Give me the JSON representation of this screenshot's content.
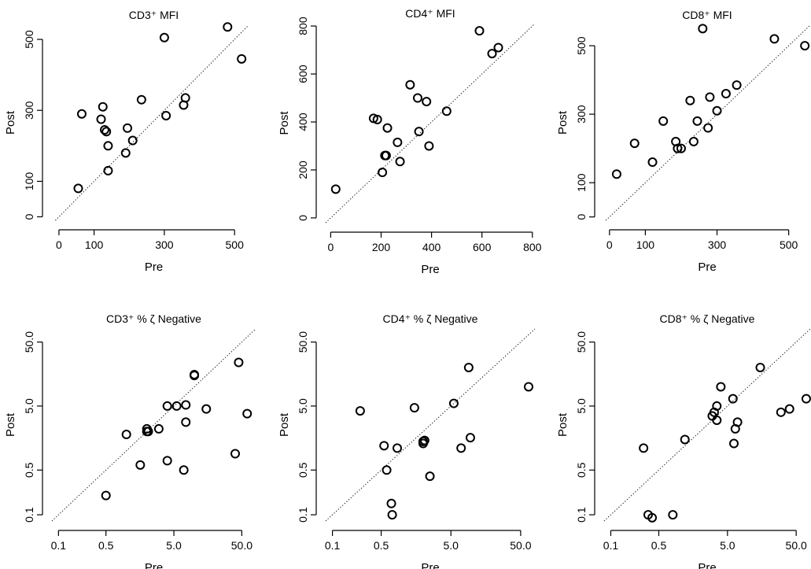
{
  "chart_data": [
    {
      "type": "scatter",
      "title": "CD3⁺ MFI",
      "xlabel": "Pre",
      "ylabel": "Post",
      "xscale": "linear",
      "yscale": "linear",
      "xlim": [
        -20,
        560
      ],
      "ylim": [
        -10,
        540
      ],
      "xticks": [
        0,
        100,
        300,
        500
      ],
      "xtick_labels": [
        "0",
        "100",
        "300",
        "500"
      ],
      "yticks": [
        0,
        100,
        300,
        500
      ],
      "ytick_labels": [
        "0",
        "100",
        "300",
        "500"
      ],
      "reference_line": "y = x",
      "points": [
        [
          55,
          80
        ],
        [
          65,
          290
        ],
        [
          120,
          275
        ],
        [
          125,
          310
        ],
        [
          130,
          245
        ],
        [
          135,
          240
        ],
        [
          140,
          200
        ],
        [
          140,
          130
        ],
        [
          190,
          180
        ],
        [
          195,
          250
        ],
        [
          210,
          215
        ],
        [
          235,
          330
        ],
        [
          300,
          505
        ],
        [
          305,
          285
        ],
        [
          355,
          315
        ],
        [
          360,
          335
        ],
        [
          480,
          535
        ],
        [
          520,
          445
        ]
      ]
    },
    {
      "type": "scatter",
      "title": "CD4⁺ MFI",
      "xlabel": "Pre",
      "ylabel": "Post",
      "xscale": "linear",
      "yscale": "linear",
      "xlim": [
        -20,
        810
      ],
      "ylim": [
        -20,
        810
      ],
      "xticks": [
        0,
        200,
        400,
        600,
        800
      ],
      "xtick_labels": [
        "0",
        "200",
        "400",
        "600",
        "800"
      ],
      "yticks": [
        0,
        200,
        400,
        600,
        800
      ],
      "ytick_labels": [
        "0",
        "200",
        "400",
        "600",
        "800"
      ],
      "reference_line": "y = x",
      "points": [
        [
          20,
          120
        ],
        [
          170,
          415
        ],
        [
          185,
          410
        ],
        [
          205,
          190
        ],
        [
          215,
          260
        ],
        [
          220,
          260
        ],
        [
          225,
          375
        ],
        [
          265,
          315
        ],
        [
          275,
          235
        ],
        [
          315,
          555
        ],
        [
          345,
          500
        ],
        [
          350,
          360
        ],
        [
          380,
          485
        ],
        [
          390,
          300
        ],
        [
          460,
          445
        ],
        [
          590,
          780
        ],
        [
          640,
          685
        ],
        [
          665,
          710
        ]
      ]
    },
    {
      "type": "scatter",
      "title": "CD8⁺ MFI",
      "xlabel": "Pre",
      "ylabel": "Post",
      "xscale": "linear",
      "yscale": "linear",
      "xlim": [
        -15,
        560
      ],
      "ylim": [
        -10,
        560
      ],
      "xticks": [
        0,
        100,
        300,
        500
      ],
      "xtick_labels": [
        "0",
        "100",
        "300",
        "500"
      ],
      "yticks": [
        0,
        100,
        300,
        500
      ],
      "ytick_labels": [
        "0",
        "100",
        "300",
        "500"
      ],
      "reference_line": "y = x",
      "points": [
        [
          20,
          125
        ],
        [
          70,
          215
        ],
        [
          120,
          160
        ],
        [
          150,
          280
        ],
        [
          185,
          220
        ],
        [
          190,
          200
        ],
        [
          200,
          200
        ],
        [
          225,
          340
        ],
        [
          235,
          220
        ],
        [
          245,
          280
        ],
        [
          260,
          550
        ],
        [
          275,
          260
        ],
        [
          280,
          350
        ],
        [
          300,
          310
        ],
        [
          325,
          360
        ],
        [
          355,
          385
        ],
        [
          460,
          520
        ],
        [
          545,
          500
        ]
      ]
    },
    {
      "type": "scatter",
      "title": "CD3⁺ % ζ Negative",
      "xlabel": "Pre",
      "ylabel": "Post",
      "xscale": "log",
      "yscale": "log",
      "xlim": [
        0.08,
        80
      ],
      "ylim": [
        0.08,
        80
      ],
      "xticks": [
        0.1,
        0.5,
        5.0,
        50.0
      ],
      "xtick_labels": [
        "0.1",
        "0.5",
        "5.0",
        "50.0"
      ],
      "yticks": [
        0.1,
        0.5,
        5.0,
        50.0
      ],
      "ytick_labels": [
        "0.1",
        "0.5",
        "5.0",
        "50.0"
      ],
      "reference_line": "y = x",
      "points": [
        [
          0.5,
          0.2
        ],
        [
          1.0,
          1.8
        ],
        [
          1.6,
          0.6
        ],
        [
          2.0,
          2.0
        ],
        [
          2.0,
          2.2
        ],
        [
          2.1,
          2.0
        ],
        [
          3.0,
          2.2
        ],
        [
          4.0,
          0.7
        ],
        [
          4.0,
          5.0
        ],
        [
          5.5,
          5.0
        ],
        [
          7.0,
          0.5
        ],
        [
          7.5,
          5.2
        ],
        [
          7.5,
          2.8
        ],
        [
          10.0,
          15.0
        ],
        [
          10.0,
          15.5
        ],
        [
          15.0,
          4.5
        ],
        [
          40.0,
          0.9
        ],
        [
          45.0,
          24.0
        ],
        [
          60.0,
          3.8
        ]
      ]
    },
    {
      "type": "scatter",
      "title": "CD4⁺ % ζ Negative",
      "xlabel": "Pre",
      "ylabel": "Post",
      "xscale": "log",
      "yscale": "log",
      "xlim": [
        0.08,
        80
      ],
      "ylim": [
        0.08,
        80
      ],
      "xticks": [
        0.1,
        0.5,
        5.0,
        50.0
      ],
      "xtick_labels": [
        "0.1",
        "0.5",
        "5.0",
        "50.0"
      ],
      "yticks": [
        0.1,
        0.5,
        5.0,
        50.0
      ],
      "ytick_labels": [
        "0.1",
        "0.5",
        "5.0",
        "50.0"
      ],
      "reference_line": "y = x",
      "points": [
        [
          0.25,
          4.2
        ],
        [
          0.55,
          1.2
        ],
        [
          0.6,
          0.5
        ],
        [
          0.7,
          0.15
        ],
        [
          0.72,
          0.1
        ],
        [
          0.85,
          1.1
        ],
        [
          1.5,
          4.7
        ],
        [
          2.0,
          1.3
        ],
        [
          2.0,
          1.4
        ],
        [
          2.1,
          1.45
        ],
        [
          2.5,
          0.4
        ],
        [
          5.5,
          5.5
        ],
        [
          7.0,
          1.1
        ],
        [
          9.0,
          20.0
        ],
        [
          9.5,
          1.6
        ],
        [
          65.0,
          10.0
        ]
      ]
    },
    {
      "type": "scatter",
      "title": "CD8⁺ % ζ Negative",
      "xlabel": "Pre",
      "ylabel": "Post",
      "xscale": "log",
      "yscale": "log",
      "xlim": [
        0.08,
        80
      ],
      "ylim": [
        0.08,
        80
      ],
      "xticks": [
        0.1,
        0.5,
        5.0,
        50.0
      ],
      "xtick_labels": [
        "0.1",
        "0.5",
        "5.0",
        "50.0"
      ],
      "yticks": [
        0.1,
        0.5,
        5.0,
        50.0
      ],
      "ytick_labels": [
        "0.1",
        "0.5",
        "5.0",
        "50.0"
      ],
      "reference_line": "y = x",
      "points": [
        [
          0.3,
          1.1
        ],
        [
          0.35,
          0.1
        ],
        [
          0.4,
          0.09
        ],
        [
          0.8,
          0.1
        ],
        [
          1.2,
          1.5
        ],
        [
          3.0,
          3.5
        ],
        [
          3.2,
          4.0
        ],
        [
          3.5,
          5.0
        ],
        [
          3.5,
          3.0
        ],
        [
          4.0,
          10.0
        ],
        [
          6.0,
          6.5
        ],
        [
          6.2,
          1.3
        ],
        [
          6.5,
          2.2
        ],
        [
          7.0,
          2.8
        ],
        [
          15.0,
          20.0
        ],
        [
          30.0,
          4.0
        ],
        [
          40.0,
          4.5
        ],
        [
          70.0,
          6.5
        ]
      ]
    }
  ]
}
